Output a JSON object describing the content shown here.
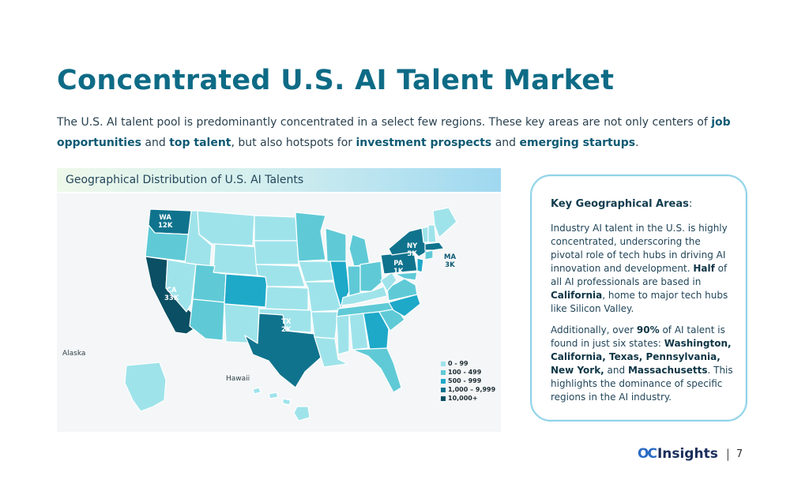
{
  "slide": {
    "title": "Concentrated U.S. AI Talent Market",
    "subtitle_parts": [
      {
        "text": "The U.S. AI talent pool is predominantly concentrated in a select few regions. These key areas are not only centers of ",
        "bold": false
      },
      {
        "text": "job opportunities",
        "bold": true
      },
      {
        "text": " and ",
        "bold": false
      },
      {
        "text": "top talent",
        "bold": true
      },
      {
        "text": ", but also hotspots for ",
        "bold": false
      },
      {
        "text": "investment prospects",
        "bold": true
      },
      {
        "text": " and ",
        "bold": false
      },
      {
        "text": "emerging startups",
        "bold": true
      },
      {
        "text": ".",
        "bold": false
      }
    ],
    "page_number": "7",
    "logo_mark": "OC",
    "logo_text": "Insights",
    "separator": "|"
  },
  "map": {
    "header": "Geographical Distribution of U.S. AI Talents",
    "inset_labels": {
      "alaska": "Alaska",
      "hawaii": "Hawaii"
    },
    "state_labels": [
      {
        "state": "WA",
        "value": "12K"
      },
      {
        "state": "CA",
        "value": "33K"
      },
      {
        "state": "TX",
        "value": "2K"
      },
      {
        "state": "PA",
        "value": "1K"
      },
      {
        "state": "NY",
        "value": "5K"
      },
      {
        "state": "MA",
        "value": "3K"
      }
    ],
    "legend": [
      {
        "label": "0 - 99",
        "color": "#9fe3ea"
      },
      {
        "label": "100 - 499",
        "color": "#5fcad6"
      },
      {
        "label": "500 - 999",
        "color": "#1ea9c9"
      },
      {
        "label": "1,000 – 9,999",
        "color": "#10738d"
      },
      {
        "label": "10,000+",
        "color": "#0a4f63"
      }
    ],
    "colors": {
      "tier1": "#9fe3ea",
      "tier2": "#5fcad6",
      "tier3": "#1ea9c9",
      "tier4": "#10738d",
      "tier5": "#0a4f63"
    }
  },
  "card": {
    "heading": "Key Geographical Areas",
    "heading_suffix": ":",
    "paragraph1": [
      {
        "text": "Industry AI talent in the U.S. is highly concentrated, underscoring the pivotal role of tech hubs in driving AI innovation and development. ",
        "bold": false
      },
      {
        "text": "Half",
        "bold": true
      },
      {
        "text": " of all AI professionals are based in ",
        "bold": false
      },
      {
        "text": "California",
        "bold": true
      },
      {
        "text": ", home to major tech hubs like Silicon Valley.",
        "bold": false
      }
    ],
    "paragraph2": [
      {
        "text": "Additionally, over ",
        "bold": false
      },
      {
        "text": "90%",
        "bold": true
      },
      {
        "text": " of AI talent is found in just six states: ",
        "bold": false
      },
      {
        "text": "Washington, California, Texas, Pennsylvania, New York,",
        "bold": true
      },
      {
        "text": " and ",
        "bold": false
      },
      {
        "text": "Massachusetts",
        "bold": true
      },
      {
        "text": ". This highlights the dominance of specific regions in the AI industry.",
        "bold": false
      }
    ]
  }
}
